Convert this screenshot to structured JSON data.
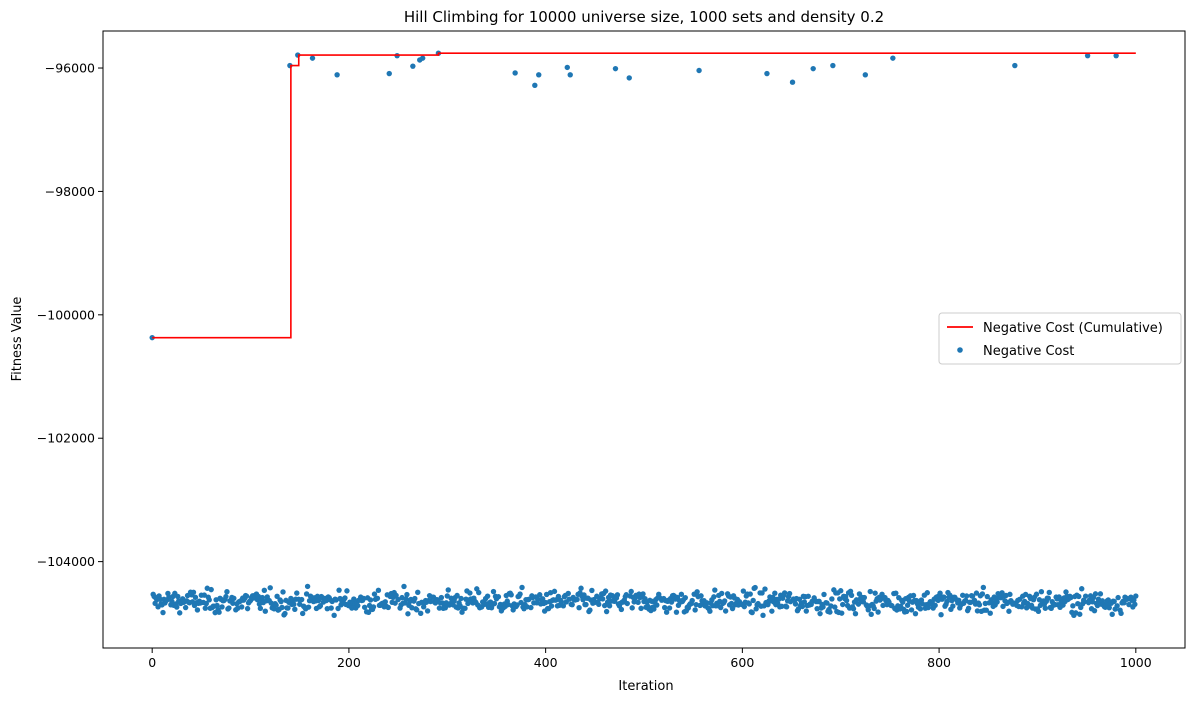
{
  "chart_data": {
    "type": "scatter",
    "title": "Hill Climbing for 10000 universe size, 1000 sets and density 0.2",
    "xlabel": "Iteration",
    "ylabel": "Fitness Value",
    "xlim": [
      -50,
      1050
    ],
    "ylim": [
      -105400,
      -95400
    ],
    "xticks": [
      0,
      200,
      400,
      600,
      800,
      1000
    ],
    "xtick_labels": [
      "0",
      "200",
      "400",
      "600",
      "800",
      "1000"
    ],
    "yticks": [
      -104000,
      -102000,
      -100000,
      -98000,
      -96000
    ],
    "ytick_labels": [
      "−104000",
      "−102000",
      "−100000",
      "−98000",
      "−96000"
    ],
    "grid": false,
    "legend_position": "center-right",
    "series": [
      {
        "name": "Negative Cost (Cumulative)",
        "kind": "step-line",
        "color": "#ff0000",
        "x": [
          0,
          141,
          141,
          149,
          149,
          291,
          291,
          1000
        ],
        "y": [
          -100370,
          -100370,
          -95960,
          -95960,
          -95790,
          -95790,
          -95760,
          -95760
        ]
      },
      {
        "name": "Negative Cost",
        "kind": "scatter",
        "color": "#1f77b4",
        "outliers": [
          [
            0,
            -100370
          ],
          [
            140,
            -95960
          ],
          [
            148,
            -95790
          ],
          [
            163,
            -95840
          ],
          [
            188,
            -96110
          ],
          [
            241,
            -96090
          ],
          [
            249,
            -95800
          ],
          [
            265,
            -95970
          ],
          [
            272,
            -95870
          ],
          [
            275,
            -95840
          ],
          [
            291,
            -95760
          ],
          [
            369,
            -96080
          ],
          [
            389,
            -96280
          ],
          [
            393,
            -96110
          ],
          [
            422,
            -95990
          ],
          [
            425,
            -96110
          ],
          [
            471,
            -96010
          ],
          [
            485,
            -96160
          ],
          [
            556,
            -96040
          ],
          [
            625,
            -96090
          ],
          [
            651,
            -96230
          ],
          [
            672,
            -96010
          ],
          [
            692,
            -95960
          ],
          [
            725,
            -96110
          ],
          [
            753,
            -95840
          ],
          [
            877,
            -95960
          ],
          [
            951,
            -95800
          ],
          [
            980,
            -95800
          ]
        ],
        "bulk": {
          "x_range": [
            1,
            1000
          ],
          "count": 970,
          "typical_value": -104650,
          "min_value": -104870,
          "max_value": -104340
        }
      }
    ]
  }
}
